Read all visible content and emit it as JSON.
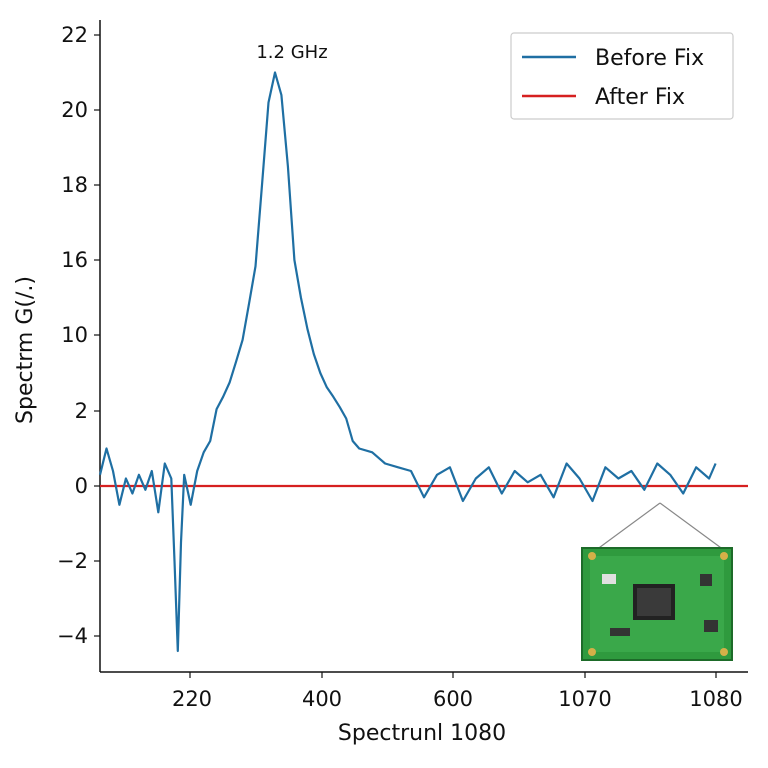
{
  "chart_data": {
    "type": "line",
    "xlabel": "Spectrunl 1080",
    "ylabel": "Spectrm G(/.)",
    "x_tick_labels": [
      "220",
      "400",
      "600",
      "1070",
      "1080"
    ],
    "y_tick_labels": [
      "22",
      "20",
      "18",
      "16",
      "10",
      "2",
      "0",
      "−2",
      "−4"
    ],
    "annotation": "1.2 GHz",
    "legend_position": "top-right",
    "grid": false,
    "inset_image": "circuit-board",
    "colors": {
      "before": "#1f6fa3",
      "after": "#d62020"
    },
    "series": [
      {
        "name": "Before Fix",
        "x_pos": [
          0.0,
          0.01,
          0.02,
          0.03,
          0.04,
          0.05,
          0.06,
          0.07,
          0.08,
          0.09,
          0.1,
          0.11,
          0.115,
          0.12,
          0.125,
          0.13,
          0.14,
          0.15,
          0.16,
          0.17,
          0.18,
          0.19,
          0.2,
          0.21,
          0.22,
          0.23,
          0.24,
          0.25,
          0.26,
          0.27,
          0.28,
          0.29,
          0.3,
          0.31,
          0.32,
          0.33,
          0.34,
          0.35,
          0.36,
          0.37,
          0.38,
          0.39,
          0.4,
          0.42,
          0.44,
          0.46,
          0.48,
          0.5,
          0.52,
          0.54,
          0.56,
          0.58,
          0.6,
          0.62,
          0.64,
          0.66,
          0.68,
          0.7,
          0.72,
          0.74,
          0.76,
          0.78,
          0.8,
          0.82,
          0.84,
          0.86,
          0.88,
          0.9,
          0.92,
          0.94,
          0.95
        ],
        "y": [
          0.3,
          1.0,
          0.4,
          -0.5,
          0.2,
          -0.2,
          0.3,
          -0.1,
          0.4,
          -0.7,
          0.6,
          0.2,
          -2.0,
          -4.4,
          -1.5,
          0.3,
          -0.5,
          0.4,
          0.9,
          1.2,
          2.2,
          3.5,
          5.0,
          7.2,
          9.5,
          12.5,
          15.5,
          18.0,
          20.2,
          21.0,
          20.4,
          18.5,
          16.0,
          13.0,
          10.5,
          8.0,
          6.0,
          4.5,
          3.5,
          2.4,
          1.8,
          1.2,
          1.0,
          0.9,
          0.6,
          0.5,
          0.4,
          -0.3,
          0.3,
          0.5,
          -0.4,
          0.2,
          0.5,
          -0.2,
          0.4,
          0.1,
          0.3,
          -0.3,
          0.6,
          0.2,
          -0.4,
          0.5,
          0.2,
          0.4,
          -0.1,
          0.6,
          0.3,
          -0.2,
          0.5,
          0.2,
          0.6
        ]
      },
      {
        "name": "After Fix",
        "x_pos": [
          0.0,
          1.0
        ],
        "y": [
          0,
          0
        ]
      }
    ]
  }
}
